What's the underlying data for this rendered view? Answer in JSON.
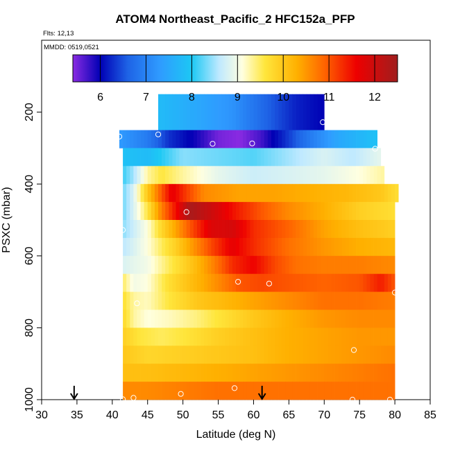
{
  "chart_data": {
    "type": "heatmap",
    "title": "ATOM4 Northeast_Pacific_2 HFC152a_PFP",
    "flights_label": "Flts: 12,13",
    "date_label": "MMDD: 0519,0521",
    "xlabel": "Latitude (deg N)",
    "ylabel": "PSXC (mbar)",
    "xlim": [
      30,
      85
    ],
    "ylim": [
      1000,
      0
    ],
    "x_ticks": [
      30,
      35,
      40,
      45,
      50,
      55,
      60,
      65,
      70,
      75,
      80,
      85
    ],
    "x_tick_labels": [
      "30",
      "35",
      "40",
      "45",
      "50",
      "55",
      "60",
      "65",
      "70",
      "75",
      "80",
      "85"
    ],
    "y_ticks": [
      200,
      400,
      600,
      800,
      1000
    ],
    "y_tick_labels": [
      "200",
      "400",
      "600",
      "800",
      "1000"
    ],
    "colorbar": {
      "range": [
        5.4,
        12.5
      ],
      "ticks": [
        6,
        7,
        8,
        9,
        10,
        11,
        12
      ],
      "tick_labels": [
        "6",
        "7",
        "8",
        "9",
        "10",
        "11",
        "12"
      ],
      "stops": [
        {
          "value": 5.4,
          "color": "#8a2be2"
        },
        {
          "value": 6.0,
          "color": "#0000b4"
        },
        {
          "value": 6.6,
          "color": "#1e63e6"
        },
        {
          "value": 7.3,
          "color": "#2f9bff"
        },
        {
          "value": 8.0,
          "color": "#1cc8f4"
        },
        {
          "value": 8.6,
          "color": "#bfe9ff"
        },
        {
          "value": 9.1,
          "color": "#ffffe0"
        },
        {
          "value": 9.6,
          "color": "#ffe63c"
        },
        {
          "value": 10.3,
          "color": "#ffb000"
        },
        {
          "value": 10.9,
          "color": "#ff6400"
        },
        {
          "value": 11.6,
          "color": "#ee0000"
        },
        {
          "value": 12.5,
          "color": "#a01e1e"
        }
      ]
    },
    "grid": {
      "lat_step": 0.5,
      "rows": [
        {
          "p_top": 150,
          "p_bot": 250,
          "lat_min": 46.5,
          "lat_max": 70.0,
          "knots": [
            [
              46.5,
              7.8
            ],
            [
              52,
              7.5
            ],
            [
              57,
              7.2
            ],
            [
              62,
              6.6
            ],
            [
              66,
              6.2
            ],
            [
              70,
              6.0
            ]
          ]
        },
        {
          "p_top": 250,
          "p_bot": 300,
          "lat_min": 41.0,
          "lat_max": 77.5,
          "knots": [
            [
              41,
              7.3
            ],
            [
              45,
              6.9
            ],
            [
              48,
              6.3
            ],
            [
              52,
              5.9
            ],
            [
              55,
              5.5
            ],
            [
              58,
              5.4
            ],
            [
              61,
              5.7
            ],
            [
              64,
              6.2
            ],
            [
              68,
              6.9
            ],
            [
              72,
              7.5
            ],
            [
              77.5,
              7.9
            ]
          ]
        },
        {
          "p_top": 300,
          "p_bot": 350,
          "lat_min": 41.5,
          "lat_max": 78.0,
          "knots": [
            [
              41.5,
              7.9
            ],
            [
              45,
              7.8
            ],
            [
              50,
              8.4
            ],
            [
              55,
              8.3
            ],
            [
              60,
              8.2
            ],
            [
              65,
              8.5
            ],
            [
              70,
              8.8
            ],
            [
              74,
              8.6
            ],
            [
              78,
              8.9
            ]
          ]
        },
        {
          "p_top": 350,
          "p_bot": 400,
          "lat_min": 41.5,
          "lat_max": 78.5,
          "knots": [
            [
              41.5,
              8.1
            ],
            [
              43,
              8.5
            ],
            [
              45,
              9.3
            ],
            [
              47,
              9.6
            ],
            [
              50,
              9.3
            ],
            [
              55,
              8.9
            ],
            [
              60,
              8.7
            ],
            [
              65,
              8.8
            ],
            [
              70,
              8.9
            ],
            [
              75,
              9.1
            ],
            [
              78.5,
              9.3
            ]
          ]
        },
        {
          "p_top": 400,
          "p_bot": 450,
          "lat_min": 41.5,
          "lat_max": 80.5,
          "knots": [
            [
              41.5,
              8.3
            ],
            [
              43,
              8.8
            ],
            [
              45,
              10.0
            ],
            [
              47,
              11.0
            ],
            [
              48.5,
              11.7
            ],
            [
              50,
              11.3
            ],
            [
              53,
              10.6
            ],
            [
              58,
              10.4
            ],
            [
              63,
              10.4
            ],
            [
              68,
              10.3
            ],
            [
              73,
              10.2
            ],
            [
              78,
              10.0
            ],
            [
              80.5,
              9.7
            ]
          ]
        },
        {
          "p_top": 450,
          "p_bot": 500,
          "lat_min": 41.5,
          "lat_max": 80.0,
          "knots": [
            [
              41.5,
              8.3
            ],
            [
              43,
              8.8
            ],
            [
              45,
              9.6
            ],
            [
              47,
              10.7
            ],
            [
              49,
              11.5
            ],
            [
              51,
              12.4
            ],
            [
              54,
              12.0
            ],
            [
              57,
              11.5
            ],
            [
              61,
              11.0
            ],
            [
              65,
              10.6
            ],
            [
              70,
              10.3
            ],
            [
              75,
              9.9
            ],
            [
              80,
              9.7
            ]
          ]
        },
        {
          "p_top": 500,
          "p_bot": 550,
          "lat_min": 41.5,
          "lat_max": 80.0,
          "knots": [
            [
              41.5,
              8.4
            ],
            [
              43,
              8.7
            ],
            [
              45,
              9.1
            ],
            [
              47,
              9.8
            ],
            [
              49,
              10.4
            ],
            [
              51,
              11.0
            ],
            [
              54,
              11.8
            ],
            [
              57,
              11.9
            ],
            [
              60,
              11.3
            ],
            [
              65,
              10.9
            ],
            [
              70,
              10.4
            ],
            [
              75,
              10.1
            ],
            [
              80,
              9.9
            ]
          ]
        },
        {
          "p_top": 550,
          "p_bot": 600,
          "lat_min": 41.5,
          "lat_max": 80.0,
          "knots": [
            [
              41.5,
              8.6
            ],
            [
              43,
              8.8
            ],
            [
              45,
              9.1
            ],
            [
              47,
              9.5
            ],
            [
              49,
              9.9
            ],
            [
              51,
              10.4
            ],
            [
              54,
              11.1
            ],
            [
              57,
              11.7
            ],
            [
              60,
              11.3
            ],
            [
              65,
              10.8
            ],
            [
              70,
              10.5
            ],
            [
              75,
              10.3
            ],
            [
              80,
              10.2
            ]
          ]
        },
        {
          "p_top": 600,
          "p_bot": 650,
          "lat_min": 41.5,
          "lat_max": 80.0,
          "knots": [
            [
              41.5,
              8.8
            ],
            [
              43,
              8.9
            ],
            [
              45,
              9.0
            ],
            [
              48,
              9.5
            ],
            [
              51,
              10.0
            ],
            [
              54,
              10.6
            ],
            [
              57,
              11.3
            ],
            [
              60,
              11.6
            ],
            [
              63,
              11.1
            ],
            [
              66,
              10.8
            ],
            [
              70,
              10.7
            ],
            [
              75,
              10.7
            ],
            [
              80,
              10.6
            ]
          ]
        },
        {
          "p_top": 650,
          "p_bot": 700,
          "lat_min": 41.5,
          "lat_max": 80.0,
          "knots": [
            [
              41.5,
              9.5
            ],
            [
              43,
              9.0
            ],
            [
              45,
              9.1
            ],
            [
              48,
              9.7
            ],
            [
              51,
              10.1
            ],
            [
              55,
              10.6
            ],
            [
              58,
              11.0
            ],
            [
              61,
              11.1
            ],
            [
              65,
              11.0
            ],
            [
              70,
              10.9
            ],
            [
              75,
              11.0
            ],
            [
              78,
              11.4
            ],
            [
              80,
              11.0
            ]
          ]
        },
        {
          "p_top": 700,
          "p_bot": 750,
          "lat_min": 41.5,
          "lat_max": 80.0,
          "knots": [
            [
              41.5,
              9.7
            ],
            [
              43,
              9.3
            ],
            [
              45,
              9.2
            ],
            [
              48,
              9.6
            ],
            [
              52,
              10.0
            ],
            [
              56,
              10.2
            ],
            [
              60,
              10.4
            ],
            [
              65,
              10.6
            ],
            [
              70,
              10.8
            ],
            [
              75,
              10.8
            ],
            [
              80,
              10.7
            ]
          ]
        },
        {
          "p_top": 750,
          "p_bot": 800,
          "lat_min": 41.5,
          "lat_max": 80.0,
          "knots": [
            [
              41.5,
              9.8
            ],
            [
              43,
              9.3
            ],
            [
              45,
              9.1
            ],
            [
              48,
              9.2
            ],
            [
              52,
              9.4
            ],
            [
              56,
              9.7
            ],
            [
              60,
              10.0
            ],
            [
              65,
              10.3
            ],
            [
              70,
              10.5
            ],
            [
              75,
              10.6
            ],
            [
              80,
              10.6
            ]
          ]
        },
        {
          "p_top": 800,
          "p_bot": 850,
          "lat_min": 41.5,
          "lat_max": 80.0,
          "knots": [
            [
              41.5,
              9.9
            ],
            [
              44,
              9.6
            ],
            [
              47,
              9.5
            ],
            [
              50,
              9.6
            ],
            [
              55,
              9.9
            ],
            [
              60,
              10.1
            ],
            [
              65,
              10.3
            ],
            [
              70,
              10.4
            ],
            [
              75,
              10.5
            ],
            [
              80,
              10.5
            ]
          ]
        },
        {
          "p_top": 850,
          "p_bot": 900,
          "lat_min": 41.5,
          "lat_max": 80.0,
          "knots": [
            [
              41.5,
              10.0
            ],
            [
              45,
              9.8
            ],
            [
              50,
              9.9
            ],
            [
              55,
              10.0
            ],
            [
              60,
              10.1
            ],
            [
              65,
              10.3
            ],
            [
              70,
              10.4
            ],
            [
              75,
              10.5
            ],
            [
              80,
              10.6
            ]
          ]
        },
        {
          "p_top": 900,
          "p_bot": 950,
          "lat_min": 41.5,
          "lat_max": 80.0,
          "knots": [
            [
              41.5,
              10.1
            ],
            [
              45,
              10.1
            ],
            [
              50,
              10.2
            ],
            [
              55,
              10.3
            ],
            [
              60,
              10.4
            ],
            [
              65,
              10.5
            ],
            [
              70,
              10.6
            ],
            [
              75,
              10.7
            ],
            [
              80,
              10.8
            ]
          ]
        },
        {
          "p_top": 950,
          "p_bot": 1000,
          "lat_min": 41.5,
          "lat_max": 80.0,
          "knots": [
            [
              41.5,
              10.6
            ],
            [
              45,
              10.6
            ],
            [
              50,
              10.7
            ],
            [
              55,
              10.8
            ],
            [
              60,
              10.8
            ],
            [
              65,
              10.8
            ],
            [
              70,
              10.8
            ],
            [
              75,
              10.8
            ],
            [
              80,
              10.8
            ]
          ]
        }
      ]
    },
    "sample_points": [
      {
        "lat": 69.8,
        "p": 228
      },
      {
        "lat": 46.5,
        "p": 262
      },
      {
        "lat": 41.0,
        "p": 268
      },
      {
        "lat": 54.2,
        "p": 288
      },
      {
        "lat": 59.8,
        "p": 287
      },
      {
        "lat": 77.2,
        "p": 302
      },
      {
        "lat": 81.0,
        "p": 458
      },
      {
        "lat": 50.5,
        "p": 478
      },
      {
        "lat": 41.5,
        "p": 528
      },
      {
        "lat": 57.8,
        "p": 672
      },
      {
        "lat": 62.2,
        "p": 677
      },
      {
        "lat": 80.0,
        "p": 702
      },
      {
        "lat": 43.5,
        "p": 732
      },
      {
        "lat": 74.2,
        "p": 862
      },
      {
        "lat": 57.3,
        "p": 968
      },
      {
        "lat": 49.7,
        "p": 984
      },
      {
        "lat": 43.0,
        "p": 995
      },
      {
        "lat": 41.5,
        "p": 999
      },
      {
        "lat": 74.0,
        "p": 1000
      },
      {
        "lat": 79.3,
        "p": 1000
      }
    ],
    "arrows": [
      {
        "lat": 34.6,
        "label": "flight marker"
      },
      {
        "lat": 61.2,
        "label": "flight marker"
      }
    ]
  }
}
